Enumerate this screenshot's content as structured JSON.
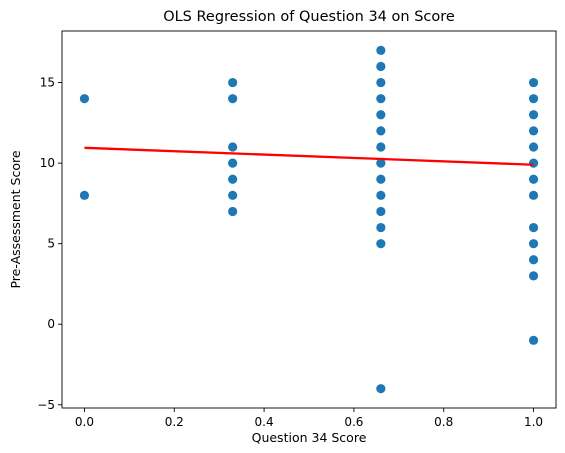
{
  "chart_data": {
    "type": "scatter",
    "title": "OLS Regression of Question 34 on Score",
    "xlabel": "Question 34 Score",
    "ylabel": "Pre-Assessment Score",
    "xlim": [
      -0.05,
      1.05
    ],
    "ylim": [
      -5.2,
      18.2
    ],
    "xticks": [
      0.0,
      0.2,
      0.4,
      0.6,
      0.8,
      1.0
    ],
    "xtick_labels": [
      "0.0",
      "0.2",
      "0.4",
      "0.6",
      "0.8",
      "1.0"
    ],
    "yticks": [
      -5,
      0,
      5,
      10,
      15
    ],
    "ytick_labels": [
      "−5",
      "0",
      "5",
      "10",
      "15"
    ],
    "grid": false,
    "legend": "none",
    "series": [
      {
        "kind": "scatter",
        "color": "#1f77b4",
        "points": [
          {
            "x": 0.0,
            "y": 14
          },
          {
            "x": 0.0,
            "y": 8
          },
          {
            "x": 0.33,
            "y": 15
          },
          {
            "x": 0.33,
            "y": 14
          },
          {
            "x": 0.33,
            "y": 11
          },
          {
            "x": 0.33,
            "y": 10
          },
          {
            "x": 0.33,
            "y": 9
          },
          {
            "x": 0.33,
            "y": 8
          },
          {
            "x": 0.33,
            "y": 7
          },
          {
            "x": 0.66,
            "y": 17
          },
          {
            "x": 0.66,
            "y": 16
          },
          {
            "x": 0.66,
            "y": 15
          },
          {
            "x": 0.66,
            "y": 14
          },
          {
            "x": 0.66,
            "y": 13
          },
          {
            "x": 0.66,
            "y": 12
          },
          {
            "x": 0.66,
            "y": 11
          },
          {
            "x": 0.66,
            "y": 10
          },
          {
            "x": 0.66,
            "y": 9
          },
          {
            "x": 0.66,
            "y": 8
          },
          {
            "x": 0.66,
            "y": 7
          },
          {
            "x": 0.66,
            "y": 6
          },
          {
            "x": 0.66,
            "y": 5
          },
          {
            "x": 0.66,
            "y": -4
          },
          {
            "x": 1.0,
            "y": 15
          },
          {
            "x": 1.0,
            "y": 14
          },
          {
            "x": 1.0,
            "y": 13
          },
          {
            "x": 1.0,
            "y": 12
          },
          {
            "x": 1.0,
            "y": 11
          },
          {
            "x": 1.0,
            "y": 10
          },
          {
            "x": 1.0,
            "y": 9
          },
          {
            "x": 1.0,
            "y": 8
          },
          {
            "x": 1.0,
            "y": 6
          },
          {
            "x": 1.0,
            "y": 5
          },
          {
            "x": 1.0,
            "y": 4
          },
          {
            "x": 1.0,
            "y": 3
          },
          {
            "x": 1.0,
            "y": -1
          }
        ]
      },
      {
        "kind": "line",
        "color": "#ff0000",
        "points": [
          {
            "x": 0.0,
            "y": 10.95
          },
          {
            "x": 1.0,
            "y": 9.9
          }
        ]
      }
    ]
  }
}
